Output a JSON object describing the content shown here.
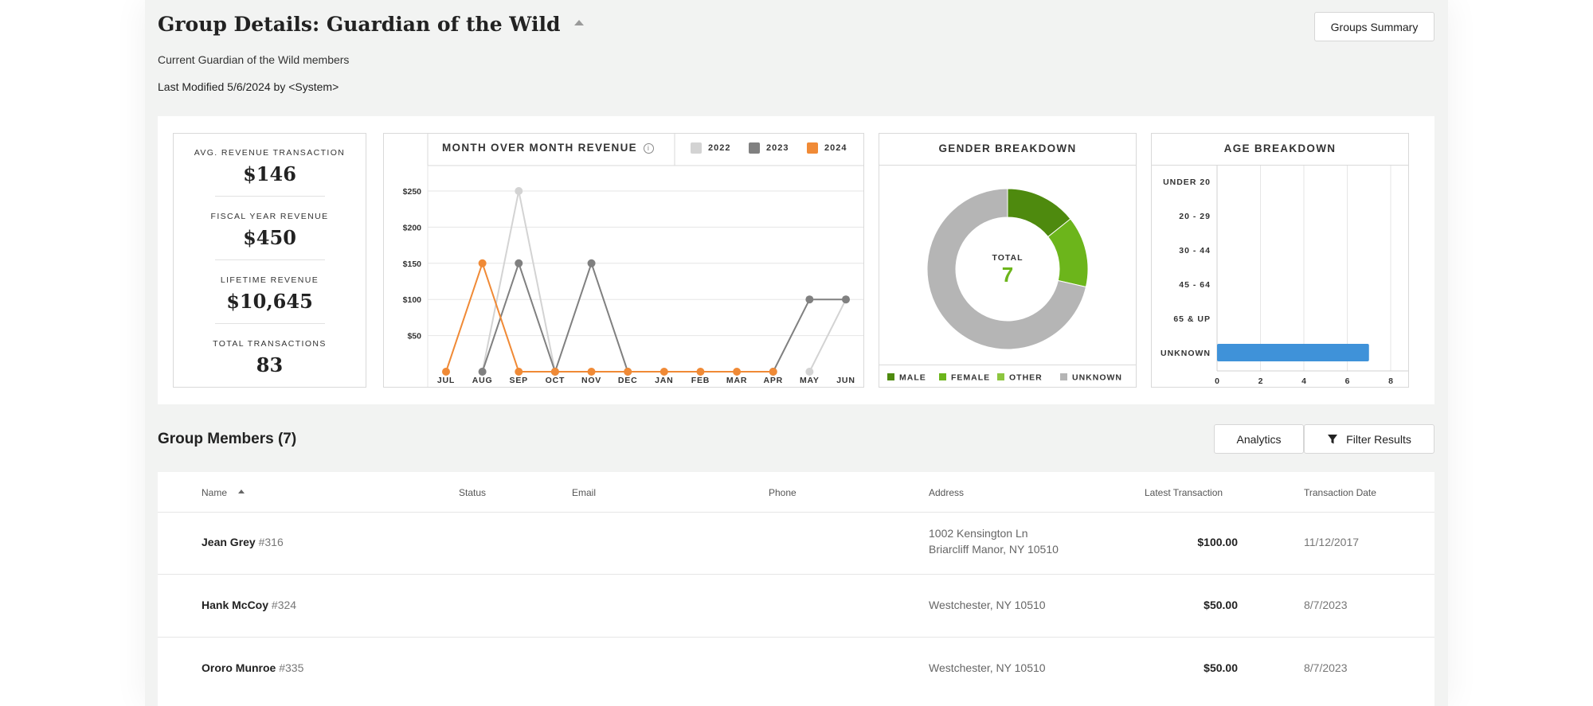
{
  "header": {
    "title": "Group Details: Guardian of the Wild",
    "subtitle": "Current Guardian of the Wild members",
    "modified": "Last Modified 5/6/2024 by <System>",
    "summary_button": "Groups Summary"
  },
  "stats": [
    {
      "label": "AVG. REVENUE TRANSACTION",
      "value": "$146"
    },
    {
      "label": "FISCAL YEAR REVENUE",
      "value": "$450"
    },
    {
      "label": "LIFETIME REVENUE",
      "value": "$10,645"
    },
    {
      "label": "TOTAL TRANSACTIONS",
      "value": "83"
    }
  ],
  "colors": {
    "y2022": "#d3d3d3",
    "y2023": "#808080",
    "y2024": "#f08a36",
    "male": "#4e8a0e",
    "female": "#6cb51b",
    "other": "#8dc63f",
    "unknown": "#b5b5b5",
    "age_bar": "#3f92d9"
  },
  "chart_data": [
    {
      "type": "line",
      "title": "MONTH OVER MONTH REVENUE",
      "categories": [
        "JUL",
        "AUG",
        "SEP",
        "OCT",
        "NOV",
        "DEC",
        "JAN",
        "FEB",
        "MAR",
        "APR",
        "MAY",
        "JUN"
      ],
      "y_ticks": [
        "$50",
        "$100",
        "$150",
        "$200",
        "$250"
      ],
      "ylim": [
        0,
        250
      ],
      "series": [
        {
          "name": "2022",
          "values": [
            null,
            0,
            250,
            0,
            null,
            null,
            null,
            null,
            null,
            null,
            0,
            100
          ]
        },
        {
          "name": "2023",
          "values": [
            null,
            0,
            150,
            0,
            150,
            0,
            null,
            null,
            null,
            0,
            100,
            100
          ]
        },
        {
          "name": "2024",
          "values": [
            0,
            150,
            0,
            0,
            0,
            0,
            0,
            0,
            0,
            0,
            null,
            null
          ]
        }
      ],
      "grid": true,
      "legend": "top-right"
    },
    {
      "type": "pie",
      "title": "GENDER BREAKDOWN",
      "center_label": "TOTAL",
      "center_value": "7",
      "labels": [
        "MALE",
        "FEMALE",
        "OTHER",
        "UNKNOWN"
      ],
      "values": [
        1,
        1,
        0,
        5
      ],
      "legend": "bottom"
    },
    {
      "type": "bar",
      "title": "AGE BREAKDOWN",
      "categories": [
        "UNDER 20",
        "20 - 29",
        "30 - 44",
        "45 - 64",
        "65 & UP",
        "UNKNOWN"
      ],
      "values": [
        0,
        0,
        0,
        0,
        0,
        7
      ],
      "x_ticks": [
        "0",
        "2",
        "4",
        "6",
        "8"
      ],
      "xlim": [
        0,
        8
      ],
      "orientation": "horizontal"
    }
  ],
  "members": {
    "title": "Group Members (7)",
    "analytics_button": "Analytics",
    "filter_button": "Filter Results",
    "columns": [
      "Name",
      "Status",
      "Email",
      "Phone",
      "Address",
      "Latest Transaction",
      "Transaction Date"
    ],
    "rows": [
      {
        "name": "Jean Grey",
        "num": "#316",
        "address1": "1002 Kensington Ln",
        "address2": "Briarcliff Manor, NY 10510",
        "amount": "$100.00",
        "date": "11/12/2017"
      },
      {
        "name": "Hank McCoy",
        "num": "#324",
        "address1": "Westchester, NY 10510",
        "address2": "",
        "amount": "$50.00",
        "date": "8/7/2023"
      },
      {
        "name": "Ororo Munroe",
        "num": "#335",
        "address1": "Westchester, NY 10510",
        "address2": "",
        "amount": "$50.00",
        "date": "8/7/2023"
      }
    ]
  }
}
